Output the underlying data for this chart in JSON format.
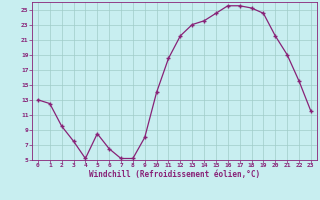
{
  "x": [
    0,
    1,
    2,
    3,
    4,
    5,
    6,
    7,
    8,
    9,
    10,
    11,
    12,
    13,
    14,
    15,
    16,
    17,
    18,
    19,
    20,
    21,
    22,
    23
  ],
  "y": [
    13,
    12.5,
    9.5,
    7.5,
    5.2,
    8.5,
    6.5,
    5.2,
    5.2,
    8,
    14,
    18.5,
    21.5,
    23,
    23.5,
    24.5,
    25.5,
    25.5,
    25.2,
    24.5,
    21.5,
    19,
    15.5,
    11.5
  ],
  "line_color": "#882277",
  "marker": "+",
  "bg_color": "#c8eef0",
  "grid_color": "#a0ccc8",
  "tick_color": "#882277",
  "label_color": "#882277",
  "xlabel": "Windchill (Refroidissement éolien,°C)",
  "ylim": [
    5,
    26
  ],
  "xlim": [
    -0.5,
    23.5
  ],
  "yticks": [
    5,
    7,
    9,
    11,
    13,
    15,
    17,
    19,
    21,
    23,
    25
  ],
  "xticks": [
    0,
    1,
    2,
    3,
    4,
    5,
    6,
    7,
    8,
    9,
    10,
    11,
    12,
    13,
    14,
    15,
    16,
    17,
    18,
    19,
    20,
    21,
    22,
    23
  ]
}
